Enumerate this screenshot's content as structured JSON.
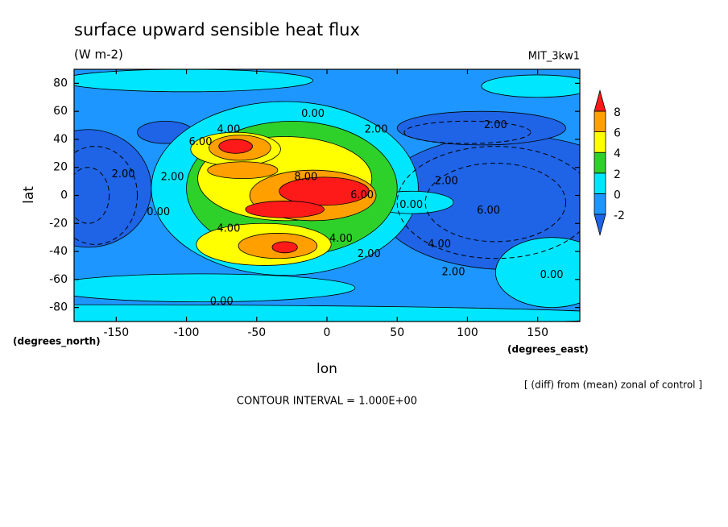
{
  "chart_data": {
    "type": "contour",
    "title": "surface upward sensible heat flux",
    "subtitle": "(W m-2)",
    "dataset": "MIT_3kw1",
    "xlabel": "lon",
    "ylabel": "lat",
    "x_units": "(degrees_east)",
    "y_units": "(degrees_north)",
    "footnote": "[ (diff) from (mean) zonal of control ]",
    "contour_interval": "CONTOUR INTERVAL = 1.000E+00",
    "xlim": [
      -180,
      180
    ],
    "ylim": [
      -90,
      90
    ],
    "xticks": [
      -150,
      -100,
      -50,
      0,
      50,
      100,
      150
    ],
    "yticks": [
      -80,
      -60,
      -40,
      -20,
      0,
      20,
      40,
      60,
      80
    ],
    "colorbar": {
      "levels": [
        -2,
        0,
        2,
        4,
        6,
        8
      ],
      "colors": [
        "#1f64e6",
        "#1e96ff",
        "#00e6ff",
        "#2ed12a",
        "#ffff00",
        "#ffa000",
        "#ff1a1a"
      ]
    },
    "contour_labels": [
      "0.00",
      "2.00",
      "4.00",
      "6.00",
      "2.00",
      "8.00",
      "6.00",
      "2.00",
      "0.00",
      "4.00",
      "4.00",
      "2.00",
      "2.00",
      "0.00",
      "6.00",
      "2.00",
      "4.00",
      "2.00",
      "0.00",
      "0.00"
    ]
  }
}
